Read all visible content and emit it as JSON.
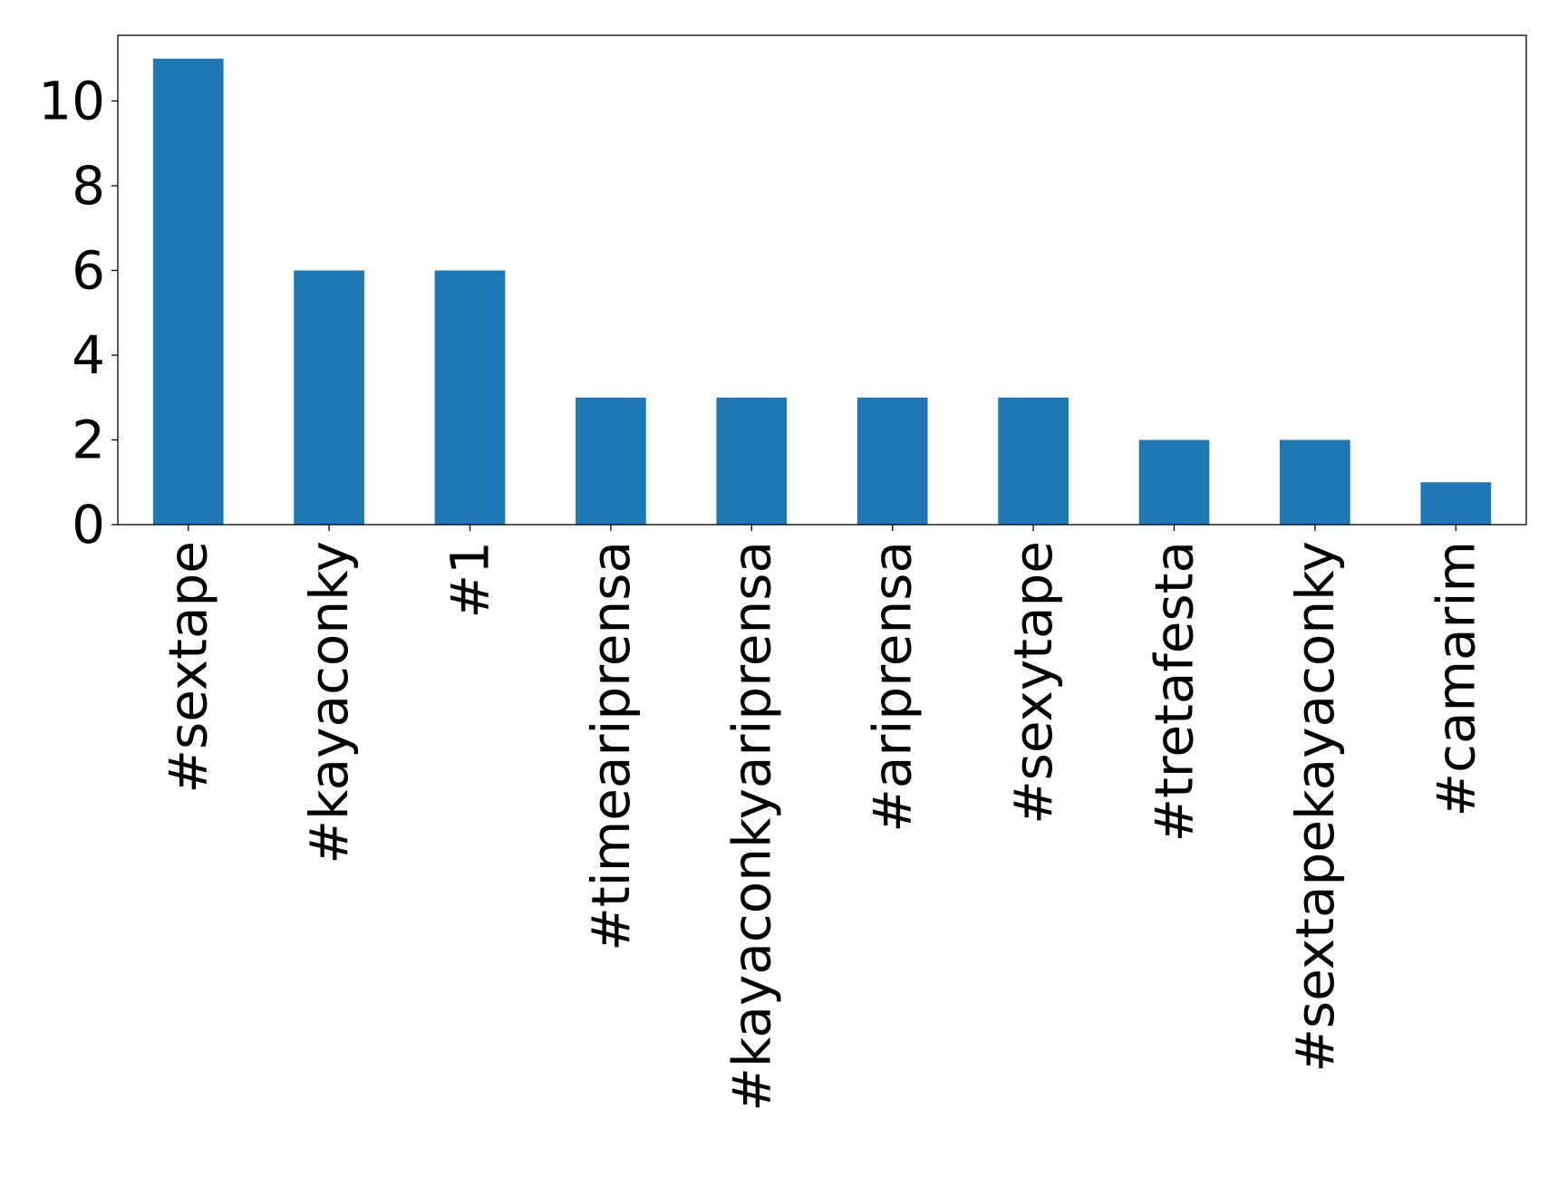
{
  "chart_data": {
    "type": "bar",
    "title": "",
    "xlabel": "",
    "ylabel": "",
    "categories": [
      "#sextape",
      "#kayaconky",
      "#1",
      "#timeariprensa",
      "#kayaconkyariprensa",
      "#ariprensa",
      "#sexytape",
      "#tretafesta",
      "#sextapekayaconky",
      "#camarim"
    ],
    "values": [
      11,
      6,
      6,
      3,
      3,
      3,
      3,
      2,
      2,
      1
    ],
    "ylim": [
      0,
      11.55
    ],
    "yticks": [
      0,
      2,
      4,
      6,
      8,
      10
    ],
    "grid": false,
    "legend": "none",
    "bar_color": "#1f77b4"
  }
}
